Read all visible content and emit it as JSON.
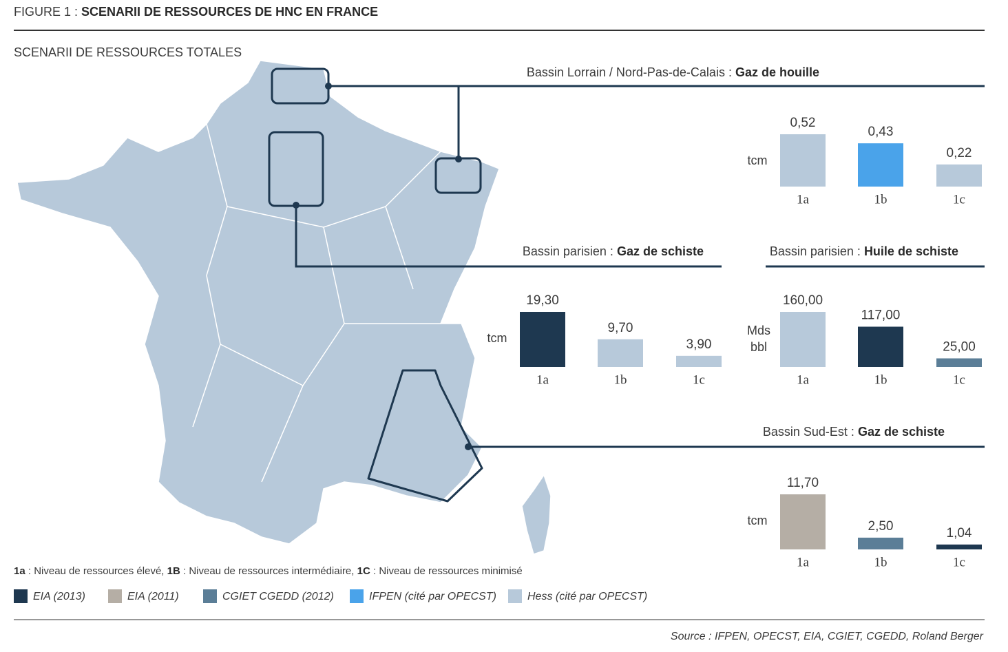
{
  "figure": {
    "label": "FIGURE 1 :",
    "title": "SCENARII DE RESSOURCES DE HNC EN FRANCE",
    "subtitle": "SCENARII DE RESSOURCES TOTALES",
    "notes": [
      {
        "key": "1a",
        "text": ": Niveau de ressources élevé,"
      },
      {
        "key": "1B",
        "text": ": Niveau de ressources intermédiaire,"
      },
      {
        "key": "1C",
        "text": ": Niveau de ressources minimisé"
      }
    ],
    "legend": [
      {
        "name": "EIA (2013)",
        "color": "#1e3850"
      },
      {
        "name": "EIA (2011)",
        "color": "#b5aea5"
      },
      {
        "name": "CGIET CGEDD (2012)",
        "color": "#5b7e97"
      },
      {
        "name": "IFPEN (cité par OPECST)",
        "color": "#4aa3ea"
      },
      {
        "name": "Hess (cité par OPECST)",
        "color": "#b7c9da"
      }
    ],
    "source": "Source : IFPEN, OPECST, EIA, CGIET, CGEDD, Roland Berger"
  },
  "chart_data": [
    {
      "type": "bar",
      "basin": "Bassin Lorrain / Nord-Pas-de-Calais :",
      "title": "Gaz de houille",
      "unit": "tcm",
      "categories": [
        "1a",
        "1b",
        "1c"
      ],
      "values": [
        0.52,
        0.43,
        0.22
      ],
      "value_labels": [
        "0,52",
        "0,43",
        "0,22"
      ],
      "colors": [
        "#b7c9da",
        "#4aa3ea",
        "#b7c9da"
      ]
    },
    {
      "type": "bar",
      "basin": "Bassin parisien :",
      "title": "Gaz de schiste",
      "unit": "tcm",
      "categories": [
        "1a",
        "1b",
        "1c"
      ],
      "values": [
        19.3,
        9.7,
        3.9
      ],
      "value_labels": [
        "19,30",
        "9,70",
        "3,90"
      ],
      "colors": [
        "#1e3850",
        "#b7c9da",
        "#b7c9da"
      ]
    },
    {
      "type": "bar",
      "basin": "Bassin parisien :",
      "title": "Huile de schiste",
      "unit": "Mds bbl",
      "categories": [
        "1a",
        "1b",
        "1c"
      ],
      "values": [
        160.0,
        117.0,
        25.0
      ],
      "value_labels": [
        "160,00",
        "117,00",
        "25,00"
      ],
      "colors": [
        "#b7c9da",
        "#1e3850",
        "#5b7e97"
      ]
    },
    {
      "type": "bar",
      "basin": "Bassin Sud-Est :",
      "title": "Gaz de schiste",
      "unit": "tcm",
      "categories": [
        "1a",
        "1b",
        "1c"
      ],
      "values": [
        11.7,
        2.5,
        1.04
      ],
      "value_labels": [
        "11,70",
        "2,50",
        "1,04"
      ],
      "colors": [
        "#b5aea5",
        "#5b7e97",
        "#1e3850"
      ]
    }
  ]
}
